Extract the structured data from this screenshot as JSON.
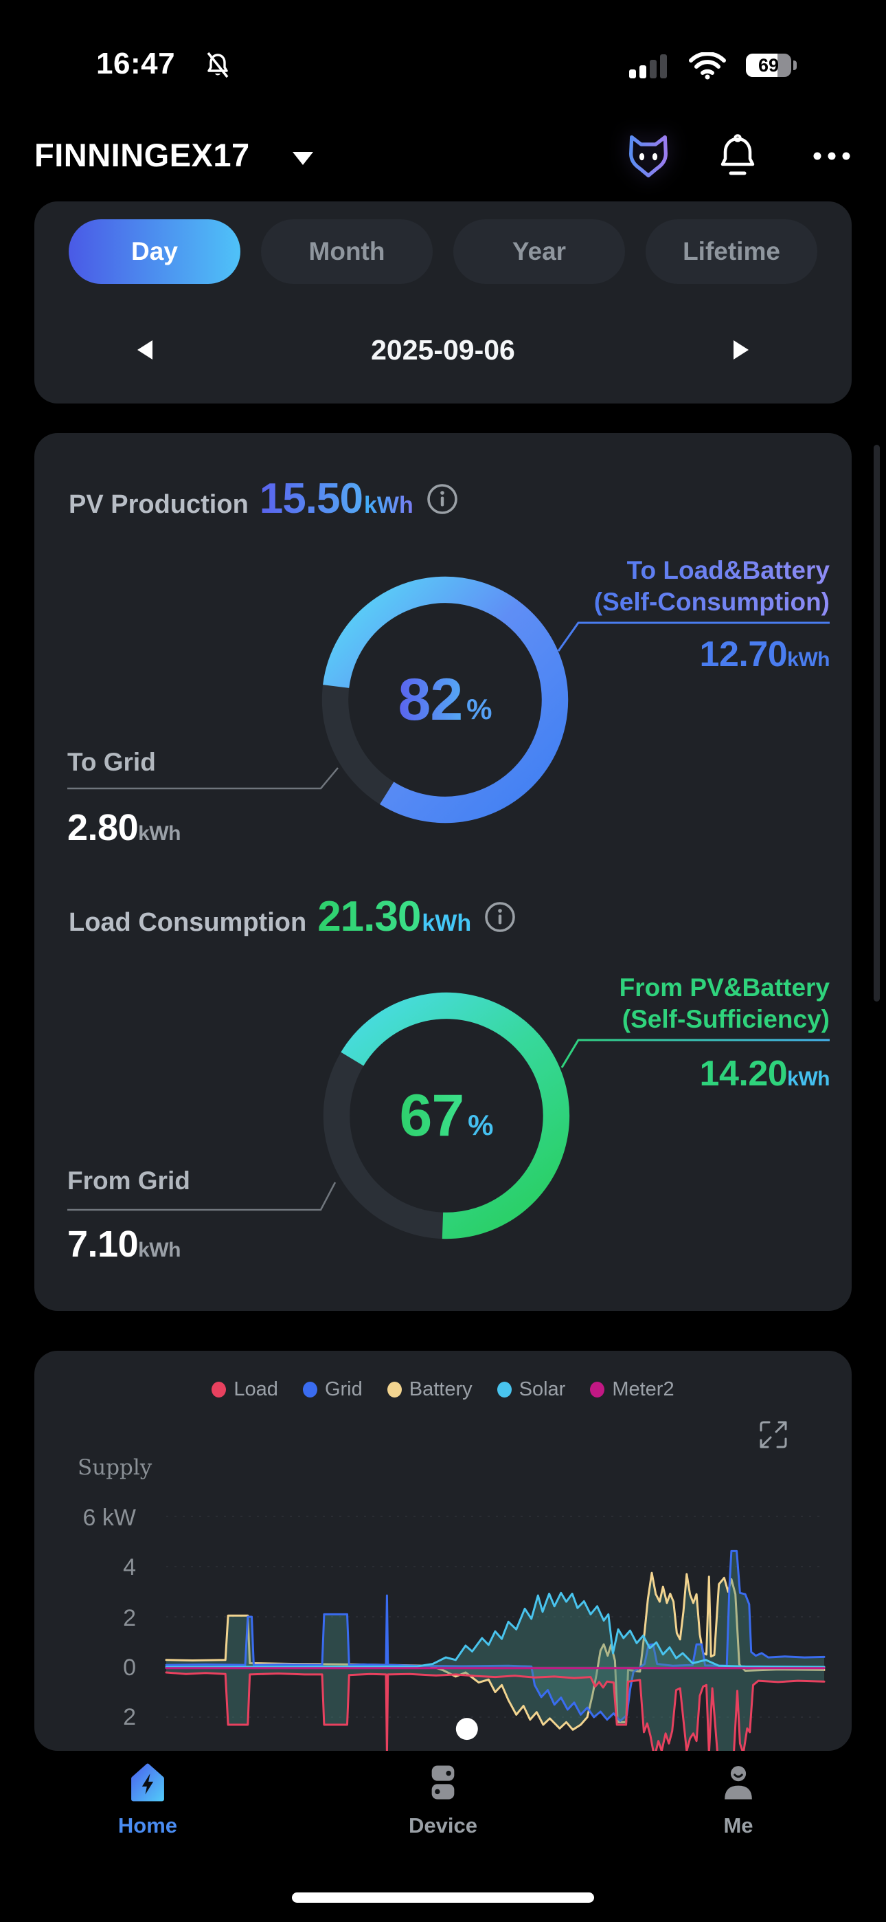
{
  "status_bar": {
    "time": "16:47",
    "battery_percent": "69"
  },
  "header": {
    "title": "FINNINGEX17"
  },
  "period_card": {
    "tabs": [
      {
        "label": "Day",
        "active": true
      },
      {
        "label": "Month",
        "active": false
      },
      {
        "label": "Year",
        "active": false
      },
      {
        "label": "Lifetime",
        "active": false
      }
    ],
    "date": "2025-09-06"
  },
  "energy_card": {
    "pv": {
      "label": "PV Production",
      "value": "15.50",
      "unit": "kWh",
      "percent": "82",
      "percent_unit": "%",
      "main_callout": {
        "line1": "To Load&Battery",
        "line2": "(Self-Consumption)",
        "value": "12.70",
        "unit": "kWh"
      },
      "grid_callout": {
        "label": "To Grid",
        "value": "2.80",
        "unit": "kWh"
      }
    },
    "load": {
      "label": "Load Consumption",
      "value": "21.30",
      "unit": "kWh",
      "percent": "67",
      "percent_unit": "%",
      "main_callout": {
        "line1": "From PV&Battery",
        "line2": "(Self-Sufficiency)",
        "value": "14.20",
        "unit": "kWh"
      },
      "grid_callout": {
        "label": "From Grid",
        "value": "7.10",
        "unit": "kWh"
      }
    }
  },
  "chart_card": {
    "y_axis_title": "Supply",
    "y_ticks": [
      "6 kW",
      "4",
      "2",
      "0",
      "2"
    ],
    "chart_data": {
      "type": "line",
      "unit": "kW",
      "ylim": [
        -4,
        6
      ],
      "grid": "subtle-dashed",
      "legend_position": "top",
      "x_range": "full day, no x tick labels visible",
      "series": [
        {
          "name": "Load",
          "color": "#e8415f",
          "fill": true,
          "points": [
            [
              0,
              -0.22
            ],
            [
              0.03,
              -0.28
            ],
            [
              0.06,
              -0.24
            ],
            [
              0.09,
              -0.28
            ],
            [
              0.094,
              -2.3
            ],
            [
              0.124,
              -2.3
            ],
            [
              0.127,
              -0.3
            ],
            [
              0.17,
              -0.26
            ],
            [
              0.21,
              -0.3
            ],
            [
              0.237,
              -0.3
            ],
            [
              0.24,
              -2.3
            ],
            [
              0.275,
              -2.3
            ],
            [
              0.278,
              -0.32
            ],
            [
              0.31,
              -0.28
            ],
            [
              0.334,
              -0.3
            ],
            [
              0.3355,
              -3.45
            ],
            [
              0.337,
              -0.3
            ],
            [
              0.37,
              -0.28
            ],
            [
              0.41,
              -0.34
            ],
            [
              0.44,
              -0.3
            ],
            [
              0.47,
              -0.36
            ],
            [
              0.5,
              -0.4
            ],
            [
              0.53,
              -0.35
            ],
            [
              0.56,
              -0.42
            ],
            [
              0.59,
              -0.38
            ],
            [
              0.62,
              -0.44
            ],
            [
              0.645,
              -0.4
            ],
            [
              0.652,
              -0.78
            ],
            [
              0.658,
              -0.6
            ],
            [
              0.664,
              -0.82
            ],
            [
              0.67,
              -0.58
            ],
            [
              0.68,
              -0.62
            ],
            [
              0.685,
              -2.3
            ],
            [
              0.699,
              -2.3
            ],
            [
              0.702,
              -0.58
            ],
            [
              0.72,
              -0.52
            ],
            [
              0.726,
              -2.6
            ],
            [
              0.731,
              -2.25
            ],
            [
              0.736,
              -2.75
            ],
            [
              0.742,
              -3.6
            ],
            [
              0.748,
              -2.95
            ],
            [
              0.753,
              -3.35
            ],
            [
              0.759,
              -2.65
            ],
            [
              0.764,
              -3.05
            ],
            [
              0.769,
              -2.55
            ],
            [
              0.775,
              -0.92
            ],
            [
              0.781,
              -0.85
            ],
            [
              0.786,
              -2.1
            ],
            [
              0.791,
              -3.35
            ],
            [
              0.796,
              -2.85
            ],
            [
              0.801,
              -2.65
            ],
            [
              0.806,
              -2.95
            ],
            [
              0.811,
              -1.15
            ],
            [
              0.816,
              -0.78
            ],
            [
              0.821,
              -0.72
            ],
            [
              0.825,
              -3.45
            ],
            [
              0.83,
              -0.85
            ],
            [
              0.838,
              -3.5
            ],
            [
              0.846,
              -3.8
            ],
            [
              0.855,
              -3.6
            ],
            [
              0.862,
              -3.75
            ],
            [
              0.868,
              -0.95
            ],
            [
              0.872,
              -3.05
            ],
            [
              0.877,
              -3.45
            ],
            [
              0.883,
              -2.45
            ],
            [
              0.887,
              -2.6
            ],
            [
              0.892,
              -0.72
            ],
            [
              0.9,
              -0.55
            ],
            [
              0.93,
              -0.6
            ],
            [
              0.96,
              -0.55
            ],
            [
              1,
              -0.58
            ]
          ]
        },
        {
          "name": "Grid",
          "color": "#3a6cf0",
          "fill": true,
          "points": [
            [
              0,
              0.08
            ],
            [
              0.06,
              0.1
            ],
            [
              0.12,
              0.08
            ],
            [
              0.124,
              2.0
            ],
            [
              0.13,
              2.0
            ],
            [
              0.133,
              0.08
            ],
            [
              0.18,
              0.1
            ],
            [
              0.237,
              0.08
            ],
            [
              0.24,
              2.1
            ],
            [
              0.275,
              2.1
            ],
            [
              0.278,
              0.08
            ],
            [
              0.3,
              0.1
            ],
            [
              0.334,
              0.08
            ],
            [
              0.3355,
              2.85
            ],
            [
              0.337,
              0.08
            ],
            [
              0.38,
              0.05
            ],
            [
              0.45,
              0.03
            ],
            [
              0.52,
              0.05
            ],
            [
              0.555,
              0.02
            ],
            [
              0.56,
              -0.72
            ],
            [
              0.57,
              -1.2
            ],
            [
              0.58,
              -0.92
            ],
            [
              0.59,
              -1.5
            ],
            [
              0.6,
              -1.22
            ],
            [
              0.61,
              -1.7
            ],
            [
              0.62,
              -1.42
            ],
            [
              0.63,
              -1.9
            ],
            [
              0.64,
              -1.62
            ],
            [
              0.65,
              -2.0
            ],
            [
              0.66,
              -1.78
            ],
            [
              0.67,
              -2.1
            ],
            [
              0.68,
              -1.85
            ],
            [
              0.69,
              -2.15
            ],
            [
              0.7,
              -1.92
            ],
            [
              0.705,
              -0.9
            ],
            [
              0.71,
              -0.2
            ],
            [
              0.718,
              -0.05
            ],
            [
              0.727,
              0.12
            ],
            [
              0.733,
              0.88
            ],
            [
              0.74,
              0.9
            ],
            [
              0.746,
              0.12
            ],
            [
              0.77,
              0.05
            ],
            [
              0.8,
              0.08
            ],
            [
              0.806,
              0.9
            ],
            [
              0.814,
              0.9
            ],
            [
              0.819,
              0.06
            ],
            [
              0.852,
              0.05
            ],
            [
              0.856,
              3.2
            ],
            [
              0.859,
              4.62
            ],
            [
              0.867,
              4.62
            ],
            [
              0.872,
              2.95
            ],
            [
              0.88,
              2.9
            ],
            [
              0.886,
              2.5
            ],
            [
              0.889,
              0.6
            ],
            [
              0.896,
              0.45
            ],
            [
              0.905,
              0.55
            ],
            [
              0.915,
              0.38
            ],
            [
              0.94,
              0.42
            ],
            [
              0.97,
              0.38
            ],
            [
              1,
              0.4
            ]
          ]
        },
        {
          "name": "Battery",
          "color": "#f2d490",
          "fill": true,
          "points": [
            [
              0,
              0.28
            ],
            [
              0.04,
              0.26
            ],
            [
              0.09,
              0.28
            ],
            [
              0.094,
              2.05
            ],
            [
              0.124,
              2.05
            ],
            [
              0.127,
              0.15
            ],
            [
              0.2,
              0.12
            ],
            [
              0.3,
              0.1
            ],
            [
              0.4,
              0.05
            ],
            [
              0.42,
              -0.12
            ],
            [
              0.44,
              -0.38
            ],
            [
              0.455,
              -0.22
            ],
            [
              0.475,
              -0.62
            ],
            [
              0.49,
              -0.5
            ],
            [
              0.5,
              -1.0
            ],
            [
              0.51,
              -0.72
            ],
            [
              0.52,
              -1.32
            ],
            [
              0.532,
              -1.9
            ],
            [
              0.543,
              -1.55
            ],
            [
              0.553,
              -2.1
            ],
            [
              0.563,
              -1.8
            ],
            [
              0.573,
              -2.3
            ],
            [
              0.583,
              -2.05
            ],
            [
              0.598,
              -2.45
            ],
            [
              0.608,
              -2.2
            ],
            [
              0.618,
              -2.5
            ],
            [
              0.63,
              -2.3
            ],
            [
              0.64,
              -2.0
            ],
            [
              0.648,
              -1.1
            ],
            [
              0.654,
              -0.3
            ],
            [
              0.66,
              0.65
            ],
            [
              0.665,
              0.9
            ],
            [
              0.671,
              0.45
            ],
            [
              0.676,
              0.88
            ],
            [
              0.682,
              0.25
            ],
            [
              0.686,
              -2.2
            ],
            [
              0.699,
              -2.2
            ],
            [
              0.702,
              -0.12
            ],
            [
              0.72,
              -0.18
            ],
            [
              0.727,
              1.4
            ],
            [
              0.732,
              2.7
            ],
            [
              0.738,
              3.75
            ],
            [
              0.744,
              2.9
            ],
            [
              0.75,
              2.6
            ],
            [
              0.755,
              3.2
            ],
            [
              0.761,
              2.55
            ],
            [
              0.766,
              2.92
            ],
            [
              0.771,
              2.6
            ],
            [
              0.776,
              1.35
            ],
            [
              0.781,
              1.1
            ],
            [
              0.786,
              2.2
            ],
            [
              0.791,
              3.7
            ],
            [
              0.796,
              2.9
            ],
            [
              0.801,
              2.55
            ],
            [
              0.806,
              2.9
            ],
            [
              0.811,
              1.3
            ],
            [
              0.816,
              0.55
            ],
            [
              0.821,
              0.5
            ],
            [
              0.825,
              3.6
            ],
            [
              0.828,
              0.42
            ],
            [
              0.833,
              0.48
            ],
            [
              0.84,
              3.3
            ],
            [
              0.848,
              3.55
            ],
            [
              0.854,
              3.0
            ],
            [
              0.859,
              3.5
            ],
            [
              0.865,
              2.9
            ],
            [
              0.871,
              0.1
            ],
            [
              0.88,
              -0.15
            ],
            [
              0.93,
              -0.1
            ],
            [
              1,
              -0.12
            ]
          ]
        },
        {
          "name": "Solar",
          "color": "#49c4ee",
          "fill": true,
          "points": [
            [
              0,
              0
            ],
            [
              0.38,
              0.02
            ],
            [
              0.405,
              0.12
            ],
            [
              0.425,
              0.38
            ],
            [
              0.44,
              0.28
            ],
            [
              0.455,
              0.85
            ],
            [
              0.465,
              0.62
            ],
            [
              0.48,
              1.15
            ],
            [
              0.49,
              0.88
            ],
            [
              0.5,
              1.42
            ],
            [
              0.51,
              1.12
            ],
            [
              0.52,
              1.8
            ],
            [
              0.532,
              1.5
            ],
            [
              0.545,
              2.32
            ],
            [
              0.555,
              1.92
            ],
            [
              0.565,
              2.85
            ],
            [
              0.572,
              2.2
            ],
            [
              0.582,
              2.92
            ],
            [
              0.59,
              2.42
            ],
            [
              0.6,
              2.95
            ],
            [
              0.608,
              2.6
            ],
            [
              0.617,
              2.92
            ],
            [
              0.625,
              2.35
            ],
            [
              0.635,
              2.62
            ],
            [
              0.645,
              2.1
            ],
            [
              0.655,
              2.42
            ],
            [
              0.665,
              1.85
            ],
            [
              0.672,
              2.1
            ],
            [
              0.679,
              0.55
            ],
            [
              0.687,
              1.5
            ],
            [
              0.695,
              1.15
            ],
            [
              0.705,
              1.45
            ],
            [
              0.715,
              0.95
            ],
            [
              0.725,
              1.25
            ],
            [
              0.735,
              0.75
            ],
            [
              0.745,
              0.98
            ],
            [
              0.755,
              0.5
            ],
            [
              0.765,
              0.78
            ],
            [
              0.775,
              0.35
            ],
            [
              0.785,
              0.55
            ],
            [
              0.8,
              0.15
            ],
            [
              0.82,
              0.28
            ],
            [
              0.84,
              0.05
            ],
            [
              0.88,
              0.02
            ],
            [
              1,
              0
            ]
          ]
        },
        {
          "name": "Meter2",
          "color": "#c21884",
          "fill": false,
          "points": [
            [
              0,
              -0.05
            ],
            [
              1,
              -0.05
            ]
          ]
        }
      ],
      "marker": {
        "fx": 0.457,
        "kw": -2.47
      }
    }
  },
  "nav": {
    "items": [
      {
        "label": "Home",
        "active": true
      },
      {
        "label": "Device",
        "active": false
      },
      {
        "label": "Me",
        "active": false
      }
    ]
  },
  "colors": {
    "accent_blue": "#4a8cf2",
    "accent_green": "#2ed06e",
    "card_bg": "#1f2227",
    "donut_track": "#2b3037",
    "area_fill": "rgba(72,138,130,0.38)",
    "tab_gradient": [
      "#4a5ae6",
      "#4fc2f8"
    ]
  }
}
